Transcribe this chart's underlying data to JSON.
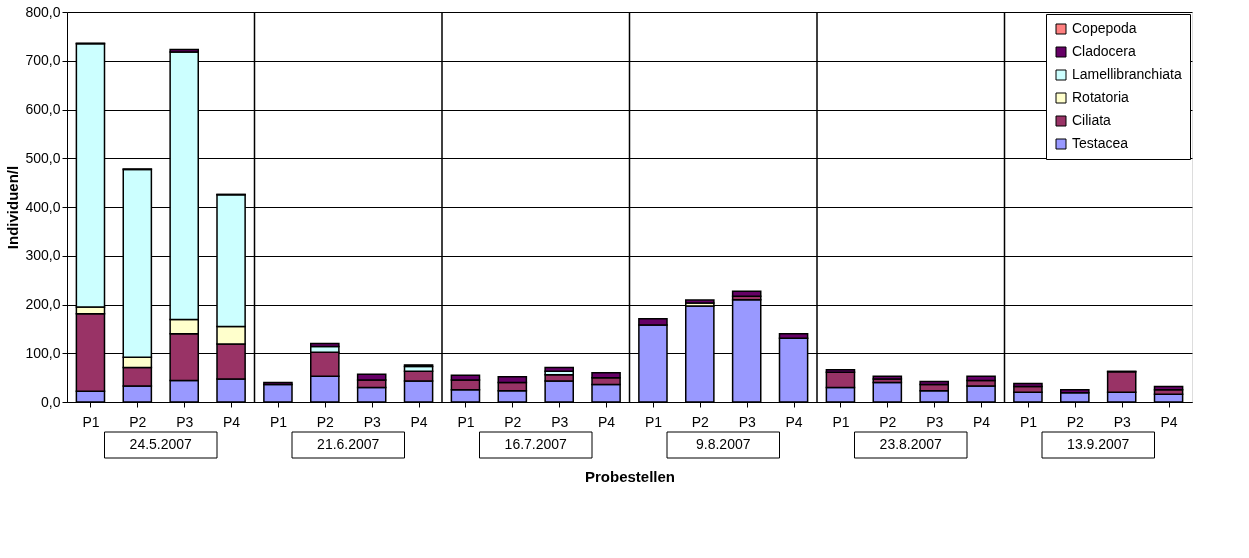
{
  "chart_data": {
    "type": "bar",
    "stacked": true,
    "xlabel": "Probestellen",
    "ylabel": "Individuen/l",
    "categories": [
      "P1",
      "P2",
      "P3",
      "P4",
      "P1",
      "P2",
      "P3",
      "P4",
      "P1",
      "P2",
      "P3",
      "P4",
      "P1",
      "P2",
      "P3",
      "P4",
      "P1",
      "P2",
      "P3",
      "P4",
      "P1",
      "P2",
      "P3",
      "P4"
    ],
    "annotations": [
      "24.5.2007",
      "21.6.2007",
      "16.7.2007",
      "9.8.2007",
      "23.8.2007",
      "13.9.2007"
    ],
    "series": [
      {
        "name": "Testacea",
        "color": "#9999ff",
        "values": [
          22,
          33,
          44,
          47,
          36,
          53,
          30,
          43,
          25,
          23,
          43,
          36,
          158,
          197,
          210,
          131,
          30,
          40,
          23,
          33,
          20,
          19,
          20,
          16
        ]
      },
      {
        "name": "Ciliata",
        "color": "#993366",
        "values": [
          159,
          38,
          96,
          72,
          0,
          49,
          15,
          20,
          20,
          17,
          13,
          14,
          0,
          null,
          7,
          0,
          31,
          7,
          13,
          11,
          12,
          0,
          42,
          9
        ]
      },
      {
        "name": "Rotatoria",
        "color": "#ffffcc",
        "values": [
          14,
          21,
          29,
          36,
          0,
          null,
          0,
          null,
          0,
          0,
          null,
          0,
          0,
          6,
          0,
          0,
          0,
          0,
          0,
          0,
          0,
          0,
          0,
          0
        ]
      },
      {
        "name": "Lamellibranchiata",
        "color": "#ccffff",
        "values": [
          540,
          385,
          549,
          270,
          0,
          12,
          0,
          10,
          0,
          0,
          7,
          0,
          0,
          0,
          0,
          0,
          0,
          0,
          0,
          0,
          0,
          0,
          0,
          0
        ]
      },
      {
        "name": "Cladocera",
        "color": "#660066",
        "values": [
          1,
          1,
          5,
          1,
          4,
          6,
          12,
          3,
          10,
          12,
          8,
          10,
          13,
          6,
          10,
          9,
          5,
          6,
          6,
          9,
          6,
          6,
          1,
          7
        ]
      },
      {
        "name": "Copepoda",
        "color": "#ff8080",
        "values": [
          0,
          0,
          0,
          0,
          0,
          0,
          0,
          0,
          0,
          0,
          0,
          0,
          0,
          0,
          0,
          0,
          0,
          0,
          0,
          0,
          0,
          0,
          0,
          0
        ]
      }
    ],
    "ylim": [
      0,
      800
    ],
    "yticks": [
      {
        "value": 0,
        "label": "0,0"
      },
      {
        "value": 100,
        "label": "100,0"
      },
      {
        "value": 200,
        "label": "200,0"
      },
      {
        "value": 300,
        "label": "300,0"
      },
      {
        "value": 400,
        "label": "400,0"
      },
      {
        "value": 500,
        "label": "500,0"
      },
      {
        "value": 600,
        "label": "600,0"
      },
      {
        "value": 700,
        "label": "700,0"
      },
      {
        "value": 800,
        "label": "800,0"
      }
    ],
    "grid": "y",
    "legend": "top right"
  }
}
